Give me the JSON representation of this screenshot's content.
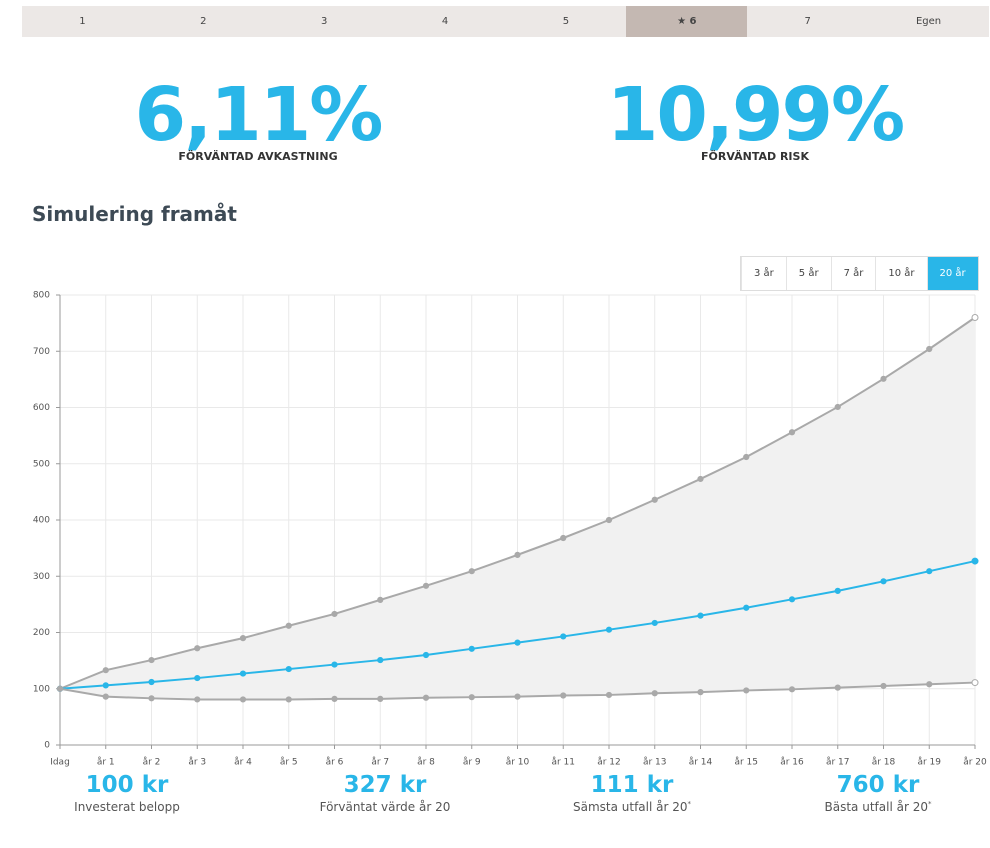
{
  "tabs": {
    "items": [
      "1",
      "2",
      "3",
      "4",
      "5",
      "6",
      "7",
      "Egen"
    ],
    "active": 5
  },
  "stats": [
    {
      "value": "6,11%",
      "label": "FÖRVÄNTAD AVKASTNING"
    },
    {
      "value": "10,99%",
      "label": "FÖRVÄNTAD RISK"
    }
  ],
  "heading": "Simulering framåt",
  "periods": {
    "items": [
      "3 år",
      "5 år",
      "7 år",
      "10 år",
      "20 år"
    ],
    "active": 4
  },
  "chart_data": {
    "type": "line",
    "categories": [
      "Idag",
      "år 1",
      "år 2",
      "år 3",
      "år 4",
      "år 5",
      "år 6",
      "år 7",
      "år 8",
      "år 9",
      "år 10",
      "år 11",
      "år 12",
      "år 13",
      "år 14",
      "år 15",
      "år 16",
      "år 17",
      "år 18",
      "år 19",
      "år 20"
    ],
    "series": [
      {
        "color": "#a9a9a9",
        "values": [
          100,
          133,
          151,
          172,
          190,
          212,
          233,
          258,
          283,
          309,
          338,
          368,
          400,
          436,
          473,
          512,
          556,
          601,
          651,
          704,
          760
        ]
      },
      {
        "color": "#29b6e8",
        "values": [
          100,
          106,
          112,
          119,
          127,
          135,
          143,
          151,
          160,
          171,
          182,
          193,
          205,
          217,
          230,
          244,
          259,
          274,
          291,
          309,
          327
        ]
      },
      {
        "color": "#a9a9a9",
        "values": [
          100,
          86,
          83,
          81,
          81,
          81,
          82,
          82,
          84,
          85,
          86,
          88,
          89,
          92,
          94,
          97,
          99,
          102,
          105,
          108,
          111
        ]
      }
    ],
    "band_fill": "#f1f1f1",
    "ylim": [
      0,
      800
    ],
    "yticks": [
      0,
      100,
      200,
      300,
      400,
      500,
      600,
      700,
      800
    ],
    "grid": true
  },
  "summary": [
    {
      "value": "100 kr",
      "label": "Investerat belopp"
    },
    {
      "value": "327 kr",
      "label": "Förväntat värde år 20"
    },
    {
      "value": "111 kr",
      "label": "Sämsta utfall år 20",
      "note": "*"
    },
    {
      "value": "760 kr",
      "label": "Bästa utfall år 20",
      "note": "*"
    }
  ]
}
